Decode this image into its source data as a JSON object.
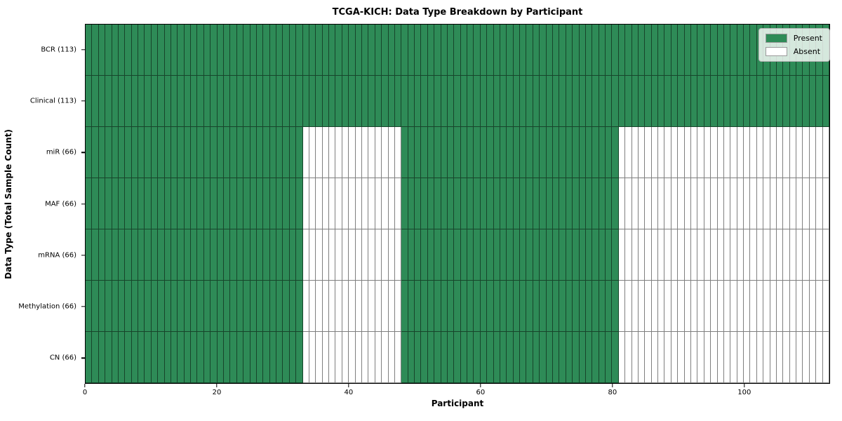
{
  "chart_data": {
    "type": "heatmap",
    "title": "TCGA-KICH: Data Type Breakdown by Participant",
    "xlabel": "Participant",
    "ylabel": "Data Type (Total Sample Count)",
    "n_participants": 113,
    "xlim": [
      0,
      113
    ],
    "x_ticks": [
      0,
      20,
      40,
      60,
      80,
      100
    ],
    "grid": false,
    "legend": {
      "position": "upper-right",
      "items": [
        {
          "label": "Present",
          "color": "#2e8b57"
        },
        {
          "label": "Absent",
          "color": "#ffffff"
        }
      ]
    },
    "colors": {
      "present": "#2e8b57",
      "absent": "#ffffff",
      "cell_edge": "rgba(0,0,0,0.5)",
      "spine": "#000000",
      "legend_border": "#b3b3b3"
    },
    "rows": [
      {
        "label": "BCR (113)",
        "data_type": "BCR",
        "total_samples": 113,
        "present_runs": [
          [
            0,
            113
          ]
        ]
      },
      {
        "label": "Clinical (113)",
        "data_type": "Clinical",
        "total_samples": 113,
        "present_runs": [
          [
            0,
            113
          ]
        ]
      },
      {
        "label": "miR (66)",
        "data_type": "miR",
        "total_samples": 66,
        "present_runs": [
          [
            0,
            33
          ],
          [
            48,
            33
          ]
        ]
      },
      {
        "label": "MAF (66)",
        "data_type": "MAF",
        "total_samples": 66,
        "present_runs": [
          [
            0,
            33
          ],
          [
            48,
            33
          ]
        ]
      },
      {
        "label": "mRNA (66)",
        "data_type": "mRNA",
        "total_samples": 66,
        "present_runs": [
          [
            0,
            33
          ],
          [
            48,
            33
          ]
        ]
      },
      {
        "label": "Methylation (66)",
        "data_type": "Methylation",
        "total_samples": 66,
        "present_runs": [
          [
            0,
            33
          ],
          [
            48,
            33
          ]
        ]
      },
      {
        "label": "CN (66)",
        "data_type": "CN",
        "total_samples": 66,
        "present_runs": [
          [
            0,
            33
          ],
          [
            48,
            33
          ]
        ]
      }
    ]
  }
}
